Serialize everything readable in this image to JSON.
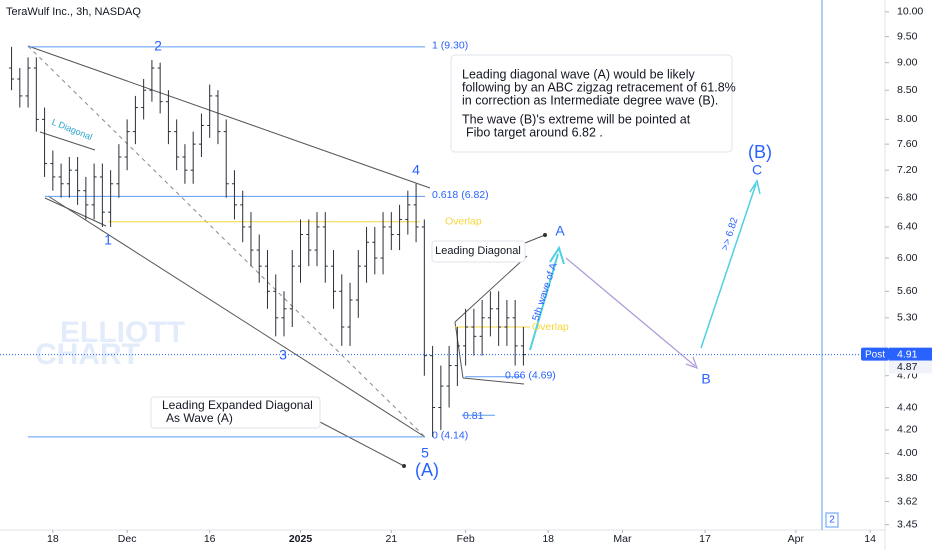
{
  "chart_data": {
    "type": "ohlc",
    "title": "TeraWulf Inc., 3h, NASDAQ",
    "log_scale": true,
    "color": "#2a2e39",
    "x": [
      -5,
      -4,
      -3,
      -2,
      -1,
      0,
      1,
      2,
      3,
      4,
      5,
      6,
      7,
      8,
      9,
      10,
      11,
      12,
      13,
      14,
      15,
      16,
      17,
      18,
      19,
      20,
      21,
      22,
      23,
      24,
      25,
      26,
      27,
      28,
      29,
      30,
      31,
      32,
      33,
      34,
      35,
      36,
      37,
      38,
      39,
      40,
      41,
      42,
      43,
      44,
      45,
      46,
      47,
      48,
      49,
      50,
      51,
      52,
      53,
      54,
      55,
      56,
      57
    ],
    "open": [
      8.9,
      8.7,
      8.4,
      8.9,
      8.0,
      7.3,
      7.1,
      7.0,
      7.2,
      6.9,
      6.7,
      7.1,
      6.6,
      7.0,
      7.4,
      7.8,
      8.2,
      8.5,
      8.9,
      8.3,
      7.8,
      7.4,
      7.2,
      7.6,
      7.9,
      8.4,
      7.8,
      7.0,
      6.7,
      6.4,
      6.1,
      5.9,
      5.6,
      5.3,
      5.4,
      5.9,
      6.3,
      6.1,
      6.4,
      5.9,
      5.6,
      5.2,
      5.5,
      5.9,
      6.2,
      6.0,
      6.4,
      6.3,
      6.5,
      6.7,
      6.4,
      4.9,
      4.4,
      4.6,
      4.8,
      5.0,
      5.2,
      5.1,
      5.3,
      5.4,
      5.2,
      5.3,
      5.0
    ],
    "high": [
      9.3,
      8.9,
      9.1,
      9.1,
      8.2,
      7.5,
      7.3,
      7.4,
      7.4,
      7.1,
      7.3,
      7.3,
      7.2,
      7.6,
      8.0,
      8.4,
      8.7,
      9.05,
      9.0,
      8.5,
      8.0,
      7.6,
      7.8,
      8.1,
      8.6,
      8.5,
      8.0,
      7.2,
      6.9,
      6.6,
      6.3,
      6.1,
      5.8,
      5.6,
      6.1,
      6.5,
      6.5,
      6.6,
      6.6,
      6.1,
      5.8,
      5.7,
      6.1,
      6.4,
      6.4,
      6.6,
      6.6,
      6.7,
      6.9,
      7.0,
      6.5,
      5.0,
      4.8,
      5.0,
      5.2,
      5.4,
      5.4,
      5.5,
      5.6,
      5.6,
      5.5,
      5.5,
      5.2
    ],
    "low": [
      8.5,
      8.2,
      8.2,
      7.8,
      7.1,
      6.9,
      6.8,
      6.8,
      6.7,
      6.5,
      6.5,
      6.4,
      6.4,
      6.8,
      7.2,
      7.6,
      8.0,
      8.3,
      8.1,
      7.6,
      7.2,
      7.0,
      7.0,
      7.4,
      7.7,
      7.6,
      6.8,
      6.5,
      6.2,
      5.9,
      5.7,
      5.4,
      5.1,
      5.1,
      5.2,
      5.7,
      5.9,
      5.9,
      5.7,
      5.4,
      5.0,
      5.0,
      5.3,
      5.7,
      5.8,
      5.8,
      6.1,
      6.1,
      6.3,
      6.2,
      4.7,
      4.14,
      4.2,
      4.4,
      4.6,
      4.8,
      4.9,
      4.9,
      5.1,
      5.0,
      5.0,
      4.8,
      4.8
    ],
    "close": [
      8.7,
      8.4,
      8.9,
      8.0,
      7.3,
      7.1,
      7.0,
      7.2,
      6.9,
      6.7,
      7.1,
      6.6,
      7.0,
      7.4,
      7.8,
      8.2,
      8.5,
      8.9,
      8.3,
      7.8,
      7.4,
      7.2,
      7.6,
      7.9,
      8.4,
      7.8,
      7.0,
      6.7,
      6.4,
      6.1,
      5.9,
      5.6,
      5.3,
      5.4,
      5.9,
      6.3,
      6.1,
      6.4,
      5.9,
      5.6,
      5.2,
      5.5,
      5.9,
      6.2,
      6.0,
      6.4,
      6.3,
      6.5,
      6.7,
      6.4,
      4.9,
      4.4,
      4.6,
      4.8,
      5.0,
      5.2,
      5.1,
      5.3,
      5.4,
      5.2,
      5.3,
      5.0,
      4.91
    ],
    "xlim": [
      -6.4,
      100.8
    ],
    "xticks": [
      {
        "value": 0,
        "label": "18"
      },
      {
        "value": 9,
        "label": "Dec"
      },
      {
        "value": 19,
        "label": "16"
      },
      {
        "value": 30,
        "label": "2025"
      },
      {
        "value": 41,
        "label": "21"
      },
      {
        "value": 50,
        "label": "Feb"
      },
      {
        "value": 60,
        "label": "18"
      },
      {
        "value": 69,
        "label": "Mar"
      },
      {
        "value": 79,
        "label": "17"
      },
      {
        "value": 90,
        "label": "Apr"
      },
      {
        "value": 99,
        "label": "14"
      }
    ],
    "ylim": [
      3.37,
      10.25
    ],
    "yticks": [
      {
        "value": 10,
        "label": "10.00"
      },
      {
        "value": 9.5,
        "label": "9.50"
      },
      {
        "value": 9,
        "label": "9.00"
      },
      {
        "value": 8.5,
        "label": "8.50"
      },
      {
        "value": 8,
        "label": "8.00"
      },
      {
        "value": 7.6,
        "label": "7.60"
      },
      {
        "value": 7.2,
        "label": "7.20"
      },
      {
        "value": 6.8,
        "label": "6.80"
      },
      {
        "value": 6.4,
        "label": "6.40"
      },
      {
        "value": 6,
        "label": "6.00"
      },
      {
        "value": 5.6,
        "label": "5.60"
      },
      {
        "value": 5.3,
        "label": "5.30"
      },
      {
        "value": 4.7,
        "label": "4.70"
      },
      {
        "value": 4.4,
        "label": "4.40"
      },
      {
        "value": 4.2,
        "label": "4.20"
      },
      {
        "value": 4,
        "label": "4.00"
      },
      {
        "value": 3.8,
        "label": "3.80"
      },
      3.62,
      3.45
    ],
    "fib_levels": [
      {
        "label": "1 (9.30)",
        "value": 9.3
      },
      {
        "label": "0.618 (6.82)",
        "value": 6.82
      },
      {
        "label": "0 (4.14)",
        "value": 4.14
      },
      {
        "label": "0.66 (4.69)",
        "value": 4.69
      },
      {
        "label": "0.81",
        "value": 4.33
      }
    ],
    "overlap": {
      "label": "Overlap",
      "values": [
        6.47,
        5.2
      ]
    },
    "last_price": {
      "session": "Post",
      "value": 4.91,
      "close": 4.87
    },
    "wave_labels": [
      "1",
      "2",
      "3",
      "4",
      "5",
      "(A)",
      "A",
      "B",
      "C",
      "(B)"
    ],
    "l_diagonal": "L Diagonal",
    "leading_diagonal": "Leading Diagonal",
    "fifth_wave": "5th wave of A",
    "target": ">> 6.82",
    "expanded_note": [
      "Leading Expanded Diagonal",
      "As Wave (A)"
    ],
    "notes": [
      "Leading diagonal wave (A) would be likely",
      "following by an ABC zigzag retracement of 61.8%",
      "in correction as Intermediate degree wave (B).",
      "The wave (B)'s extreme will be pointed at",
      "Fibo target around 6.82 ."
    ],
    "watermark": [
      "ELLIOTT",
      "CHART"
    ],
    "badge": "2"
  }
}
